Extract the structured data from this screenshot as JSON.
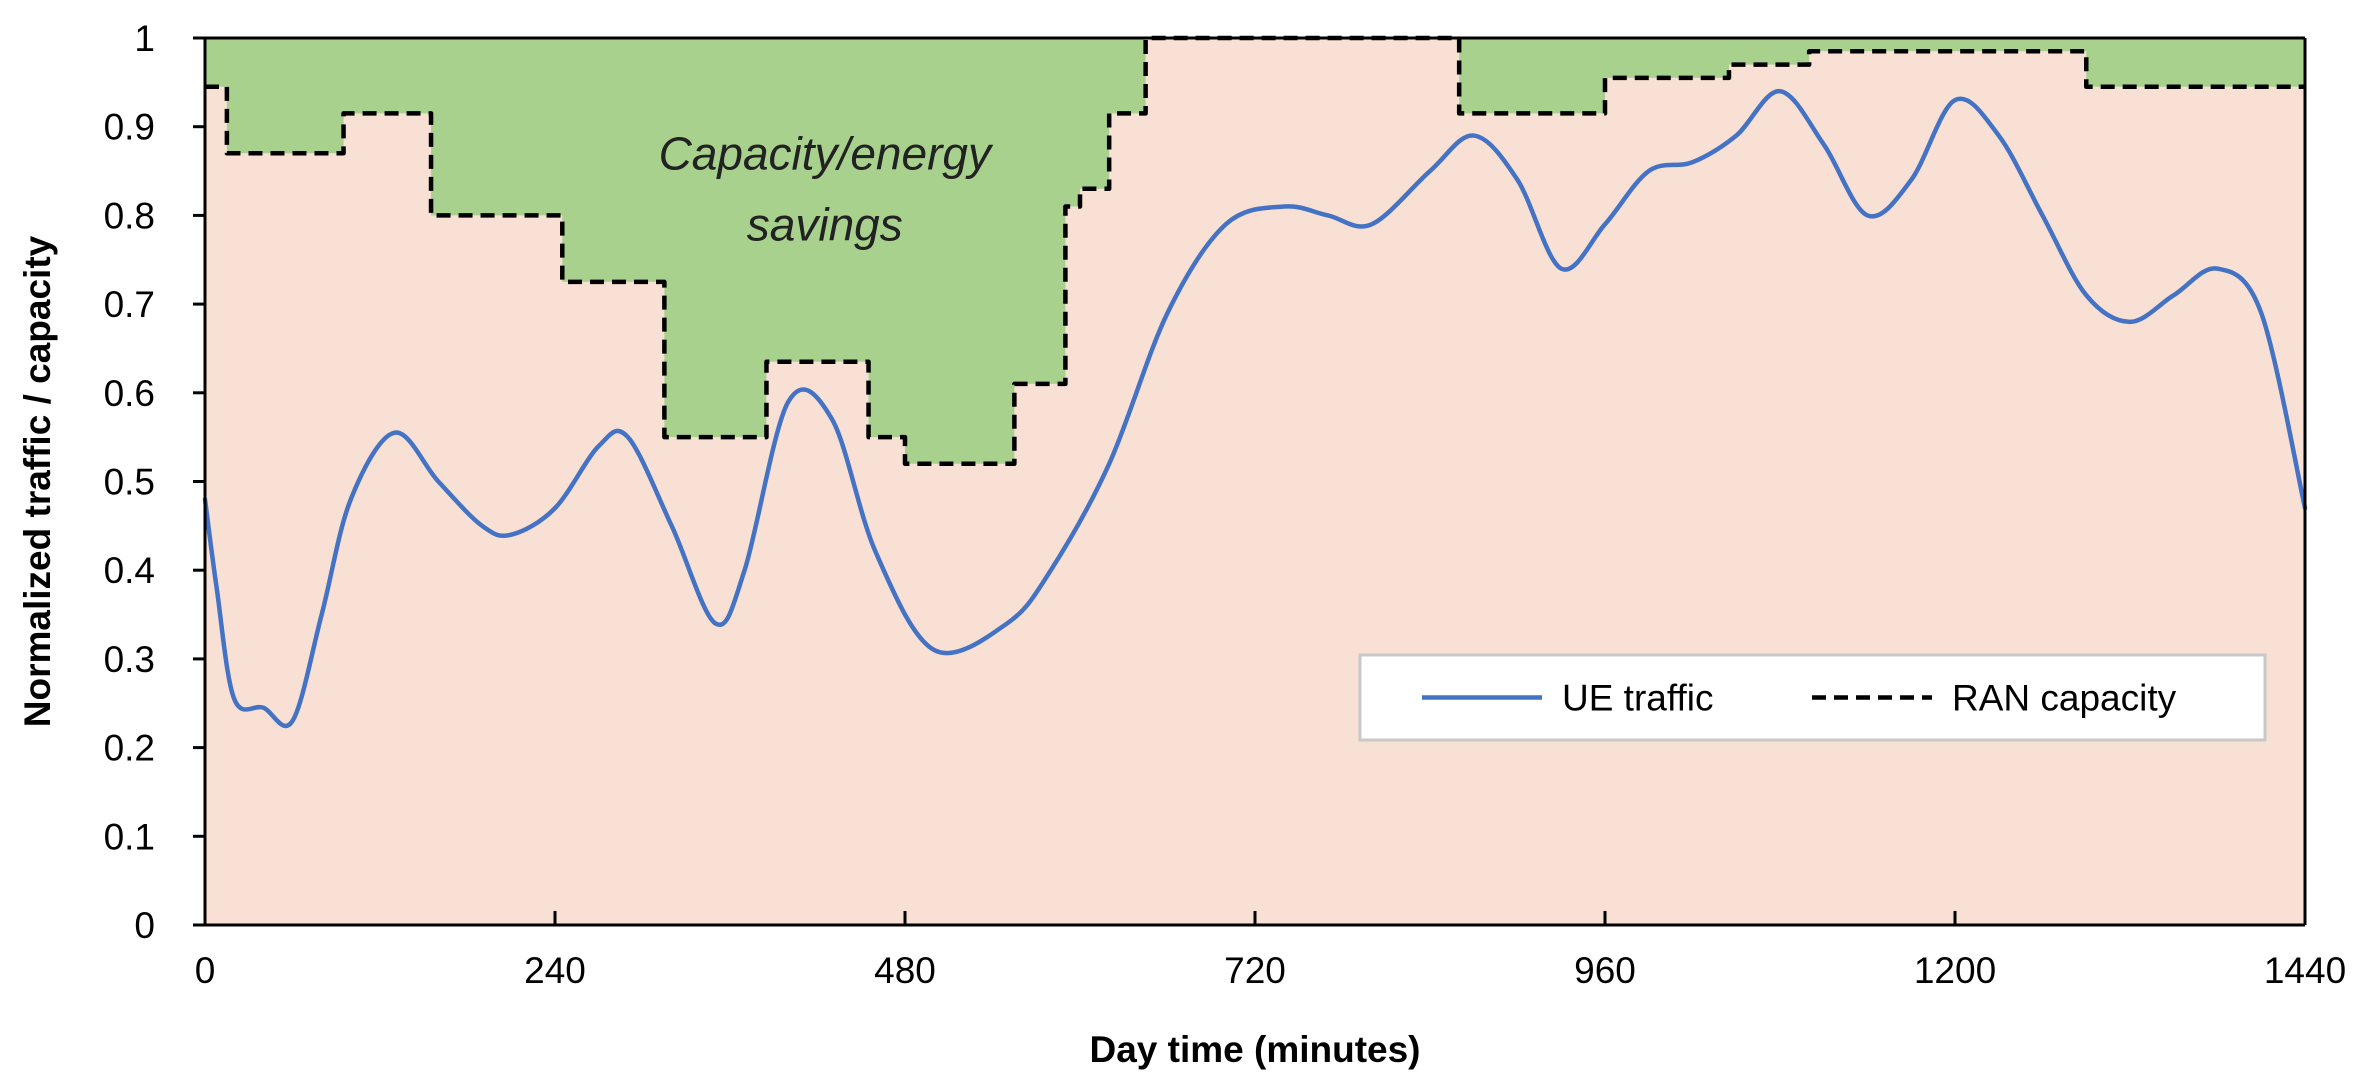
{
  "chart_data": {
    "type": "line",
    "title": "",
    "xlabel": "Day time (minutes)",
    "ylabel": "Normalized traffic / capacity",
    "xlim": [
      0,
      1440
    ],
    "ylim": [
      0,
      1
    ],
    "x_ticks": [
      0,
      240,
      480,
      720,
      960,
      1200,
      1440
    ],
    "y_ticks": [
      0,
      0.1,
      0.2,
      0.3,
      0.4,
      0.5,
      0.6,
      0.7,
      0.8,
      0.9,
      1
    ],
    "x_tick_labels": [
      "0",
      "240",
      "480",
      "720",
      "960",
      "1200",
      "1440"
    ],
    "y_tick_labels": [
      "0",
      "0.1",
      "0.2",
      "0.3",
      "0.4",
      "0.5",
      "0.6",
      "0.7",
      "0.8",
      "0.9",
      "1"
    ],
    "grid": false,
    "legend_position": "bottom-right",
    "annotation": {
      "lines": [
        "Capacity/energy",
        "savings"
      ],
      "x": 425,
      "y_top": 0.87,
      "y_bottom": 0.79
    },
    "colors": {
      "ue_traffic": "#4472C4",
      "ran_capacity": "#000000",
      "savings_fill": "#A9D18E",
      "background_fill": "#F8E1D4",
      "legend_border": "#C8C8C8"
    },
    "series": [
      {
        "name": "UE traffic",
        "style": "solid",
        "x": [
          0,
          8,
          20,
          40,
          60,
          80,
          100,
          130,
          160,
          190,
          210,
          240,
          270,
          290,
          320,
          350,
          370,
          400,
          430,
          460,
          500,
          550,
          580,
          620,
          660,
          700,
          740,
          770,
          800,
          840,
          870,
          900,
          930,
          960,
          990,
          1020,
          1050,
          1080,
          1110,
          1140,
          1170,
          1200,
          1230,
          1260,
          1290,
          1320,
          1350,
          1380,
          1410,
          1440
        ],
        "values": [
          0.48,
          0.38,
          0.255,
          0.245,
          0.23,
          0.35,
          0.48,
          0.555,
          0.5,
          0.45,
          0.44,
          0.47,
          0.54,
          0.55,
          0.45,
          0.34,
          0.4,
          0.59,
          0.57,
          0.42,
          0.31,
          0.34,
          0.4,
          0.52,
          0.69,
          0.79,
          0.81,
          0.8,
          0.79,
          0.85,
          0.89,
          0.84,
          0.74,
          0.79,
          0.85,
          0.86,
          0.89,
          0.94,
          0.88,
          0.8,
          0.84,
          0.93,
          0.89,
          0.8,
          0.71,
          0.68,
          0.71,
          0.74,
          0.69,
          0.47
        ]
      },
      {
        "name": "RAN capacity",
        "style": "dashed",
        "step": true,
        "x": [
          0,
          15,
          15,
          95,
          95,
          155,
          155,
          245,
          245,
          315,
          315,
          385,
          385,
          455,
          455,
          480,
          480,
          555,
          555,
          590,
          590,
          600,
          600,
          620,
          620,
          645,
          645,
          860,
          860,
          960,
          960,
          1045,
          1045,
          1100,
          1100,
          1290,
          1290,
          1440
        ],
        "values": [
          0.945,
          0.945,
          0.87,
          0.87,
          0.915,
          0.915,
          0.8,
          0.8,
          0.725,
          0.725,
          0.55,
          0.55,
          0.635,
          0.635,
          0.55,
          0.55,
          0.52,
          0.52,
          0.61,
          0.61,
          0.81,
          0.81,
          0.83,
          0.83,
          0.915,
          0.915,
          1.0,
          1.0,
          0.915,
          0.915,
          0.955,
          0.955,
          0.97,
          0.97,
          0.985,
          0.985,
          0.945,
          0.945
        ]
      }
    ]
  }
}
